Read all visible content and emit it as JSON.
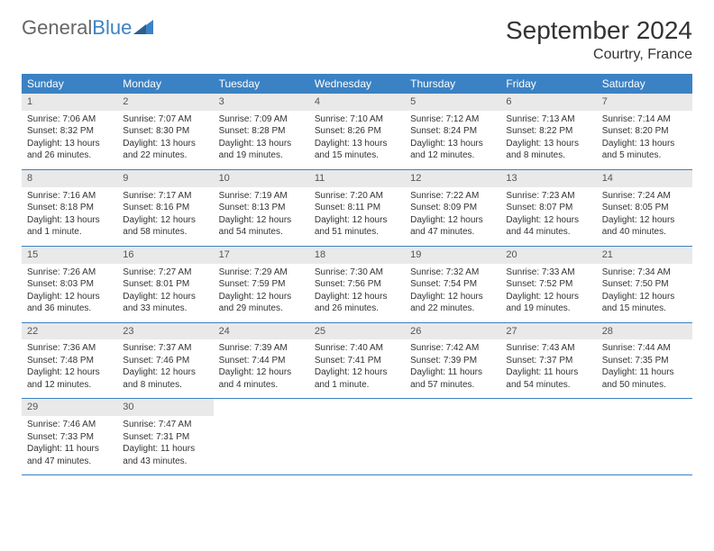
{
  "brand": {
    "name1": "General",
    "name2": "Blue"
  },
  "title": "September 2024",
  "location": "Courtry, France",
  "colors": {
    "accent": "#3b82c4",
    "daynum_bg": "#e9e9e9",
    "text": "#333333"
  },
  "weekdays": [
    "Sunday",
    "Monday",
    "Tuesday",
    "Wednesday",
    "Thursday",
    "Friday",
    "Saturday"
  ],
  "weeks": [
    [
      {
        "n": "1",
        "sr": "Sunrise: 7:06 AM",
        "ss": "Sunset: 8:32 PM",
        "d1": "Daylight: 13 hours",
        "d2": "and 26 minutes."
      },
      {
        "n": "2",
        "sr": "Sunrise: 7:07 AM",
        "ss": "Sunset: 8:30 PM",
        "d1": "Daylight: 13 hours",
        "d2": "and 22 minutes."
      },
      {
        "n": "3",
        "sr": "Sunrise: 7:09 AM",
        "ss": "Sunset: 8:28 PM",
        "d1": "Daylight: 13 hours",
        "d2": "and 19 minutes."
      },
      {
        "n": "4",
        "sr": "Sunrise: 7:10 AM",
        "ss": "Sunset: 8:26 PM",
        "d1": "Daylight: 13 hours",
        "d2": "and 15 minutes."
      },
      {
        "n": "5",
        "sr": "Sunrise: 7:12 AM",
        "ss": "Sunset: 8:24 PM",
        "d1": "Daylight: 13 hours",
        "d2": "and 12 minutes."
      },
      {
        "n": "6",
        "sr": "Sunrise: 7:13 AM",
        "ss": "Sunset: 8:22 PM",
        "d1": "Daylight: 13 hours",
        "d2": "and 8 minutes."
      },
      {
        "n": "7",
        "sr": "Sunrise: 7:14 AM",
        "ss": "Sunset: 8:20 PM",
        "d1": "Daylight: 13 hours",
        "d2": "and 5 minutes."
      }
    ],
    [
      {
        "n": "8",
        "sr": "Sunrise: 7:16 AM",
        "ss": "Sunset: 8:18 PM",
        "d1": "Daylight: 13 hours",
        "d2": "and 1 minute."
      },
      {
        "n": "9",
        "sr": "Sunrise: 7:17 AM",
        "ss": "Sunset: 8:16 PM",
        "d1": "Daylight: 12 hours",
        "d2": "and 58 minutes."
      },
      {
        "n": "10",
        "sr": "Sunrise: 7:19 AM",
        "ss": "Sunset: 8:13 PM",
        "d1": "Daylight: 12 hours",
        "d2": "and 54 minutes."
      },
      {
        "n": "11",
        "sr": "Sunrise: 7:20 AM",
        "ss": "Sunset: 8:11 PM",
        "d1": "Daylight: 12 hours",
        "d2": "and 51 minutes."
      },
      {
        "n": "12",
        "sr": "Sunrise: 7:22 AM",
        "ss": "Sunset: 8:09 PM",
        "d1": "Daylight: 12 hours",
        "d2": "and 47 minutes."
      },
      {
        "n": "13",
        "sr": "Sunrise: 7:23 AM",
        "ss": "Sunset: 8:07 PM",
        "d1": "Daylight: 12 hours",
        "d2": "and 44 minutes."
      },
      {
        "n": "14",
        "sr": "Sunrise: 7:24 AM",
        "ss": "Sunset: 8:05 PM",
        "d1": "Daylight: 12 hours",
        "d2": "and 40 minutes."
      }
    ],
    [
      {
        "n": "15",
        "sr": "Sunrise: 7:26 AM",
        "ss": "Sunset: 8:03 PM",
        "d1": "Daylight: 12 hours",
        "d2": "and 36 minutes."
      },
      {
        "n": "16",
        "sr": "Sunrise: 7:27 AM",
        "ss": "Sunset: 8:01 PM",
        "d1": "Daylight: 12 hours",
        "d2": "and 33 minutes."
      },
      {
        "n": "17",
        "sr": "Sunrise: 7:29 AM",
        "ss": "Sunset: 7:59 PM",
        "d1": "Daylight: 12 hours",
        "d2": "and 29 minutes."
      },
      {
        "n": "18",
        "sr": "Sunrise: 7:30 AM",
        "ss": "Sunset: 7:56 PM",
        "d1": "Daylight: 12 hours",
        "d2": "and 26 minutes."
      },
      {
        "n": "19",
        "sr": "Sunrise: 7:32 AM",
        "ss": "Sunset: 7:54 PM",
        "d1": "Daylight: 12 hours",
        "d2": "and 22 minutes."
      },
      {
        "n": "20",
        "sr": "Sunrise: 7:33 AM",
        "ss": "Sunset: 7:52 PM",
        "d1": "Daylight: 12 hours",
        "d2": "and 19 minutes."
      },
      {
        "n": "21",
        "sr": "Sunrise: 7:34 AM",
        "ss": "Sunset: 7:50 PM",
        "d1": "Daylight: 12 hours",
        "d2": "and 15 minutes."
      }
    ],
    [
      {
        "n": "22",
        "sr": "Sunrise: 7:36 AM",
        "ss": "Sunset: 7:48 PM",
        "d1": "Daylight: 12 hours",
        "d2": "and 12 minutes."
      },
      {
        "n": "23",
        "sr": "Sunrise: 7:37 AM",
        "ss": "Sunset: 7:46 PM",
        "d1": "Daylight: 12 hours",
        "d2": "and 8 minutes."
      },
      {
        "n": "24",
        "sr": "Sunrise: 7:39 AM",
        "ss": "Sunset: 7:44 PM",
        "d1": "Daylight: 12 hours",
        "d2": "and 4 minutes."
      },
      {
        "n": "25",
        "sr": "Sunrise: 7:40 AM",
        "ss": "Sunset: 7:41 PM",
        "d1": "Daylight: 12 hours",
        "d2": "and 1 minute."
      },
      {
        "n": "26",
        "sr": "Sunrise: 7:42 AM",
        "ss": "Sunset: 7:39 PM",
        "d1": "Daylight: 11 hours",
        "d2": "and 57 minutes."
      },
      {
        "n": "27",
        "sr": "Sunrise: 7:43 AM",
        "ss": "Sunset: 7:37 PM",
        "d1": "Daylight: 11 hours",
        "d2": "and 54 minutes."
      },
      {
        "n": "28",
        "sr": "Sunrise: 7:44 AM",
        "ss": "Sunset: 7:35 PM",
        "d1": "Daylight: 11 hours",
        "d2": "and 50 minutes."
      }
    ],
    [
      {
        "n": "29",
        "sr": "Sunrise: 7:46 AM",
        "ss": "Sunset: 7:33 PM",
        "d1": "Daylight: 11 hours",
        "d2": "and 47 minutes."
      },
      {
        "n": "30",
        "sr": "Sunrise: 7:47 AM",
        "ss": "Sunset: 7:31 PM",
        "d1": "Daylight: 11 hours",
        "d2": "and 43 minutes."
      },
      null,
      null,
      null,
      null,
      null
    ]
  ]
}
